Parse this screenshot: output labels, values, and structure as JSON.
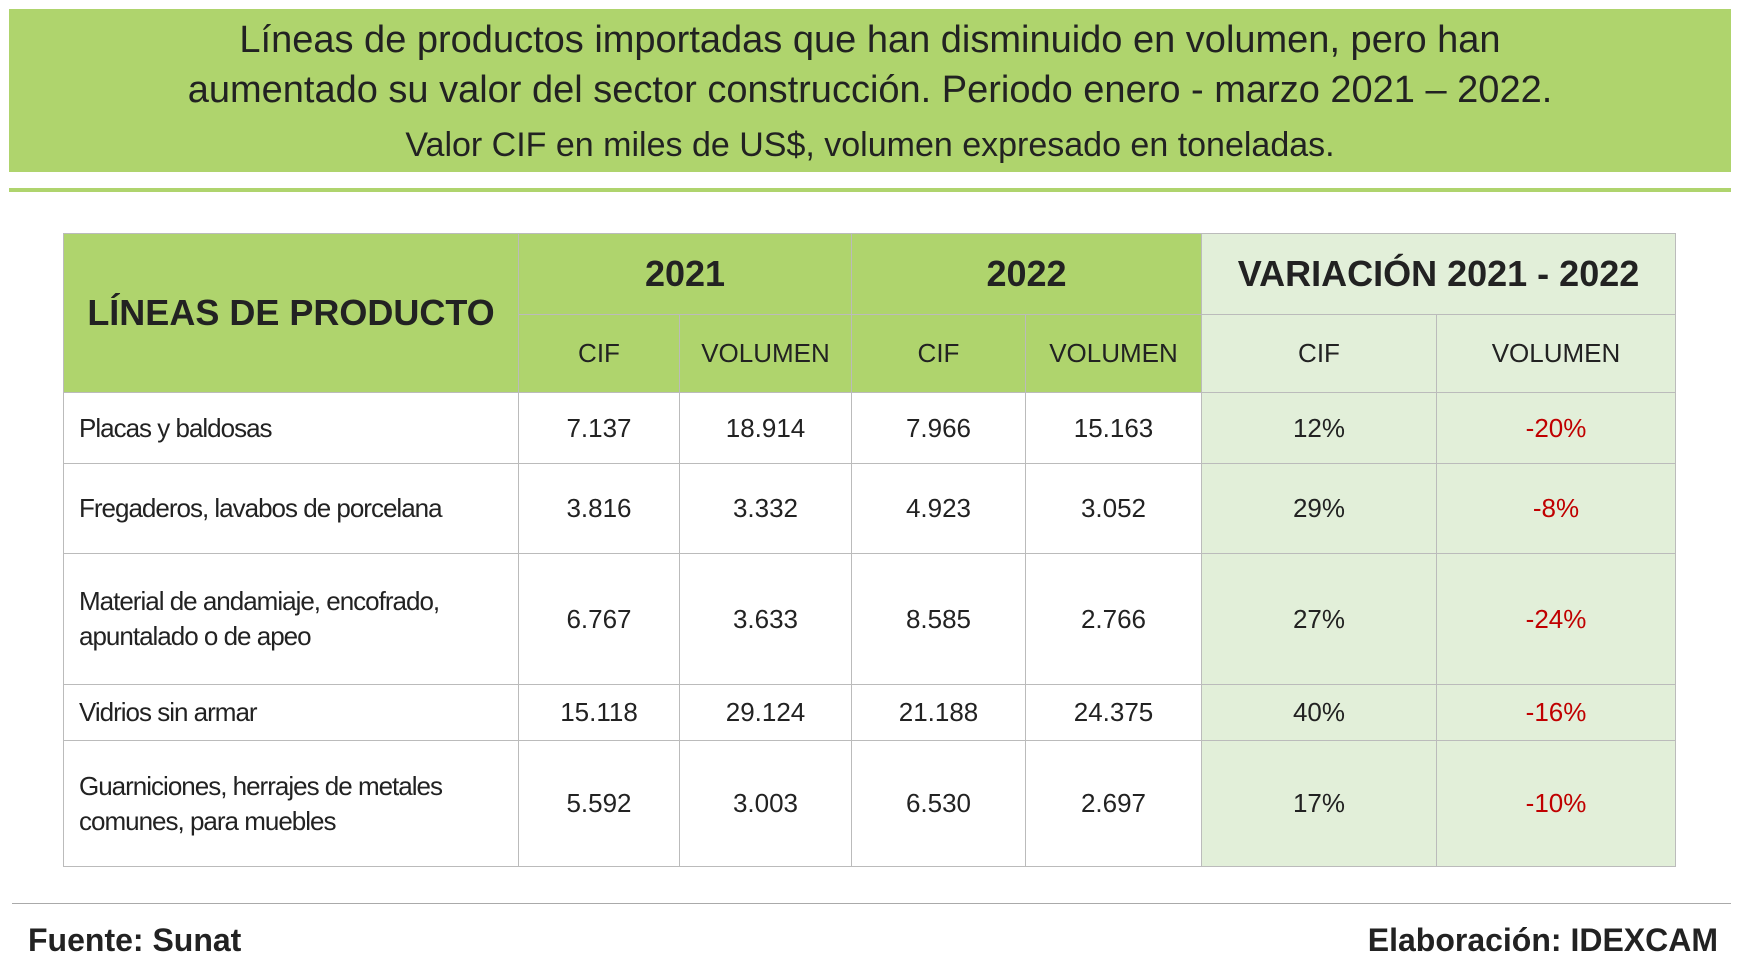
{
  "header": {
    "title_lines": [
      "Líneas de productos importadas que han disminuido en volumen, pero han",
      "aumentado su valor del sector construcción. Periodo enero - marzo 2021 – 2022."
    ],
    "subtitle": "Valor CIF en miles de US$, volumen expresado en toneladas."
  },
  "table": {
    "product_header": "LÍNEAS DE PRODUCTO",
    "groups": [
      "2021",
      "2022",
      "VARIACIÓN 2021 - 2022"
    ],
    "subheaders": [
      "CIF",
      "VOLUMEN",
      "CIF",
      "VOLUMEN",
      "CIF",
      "VOLUMEN"
    ],
    "rows": [
      [
        "Placas y baldosas",
        "7.137",
        "18.914",
        "7.966",
        "15.163",
        "12%",
        "-20%"
      ],
      [
        "Fregaderos, lavabos de porcelana",
        "3.816",
        "3.332",
        "4.923",
        "3.052",
        "29%",
        "-8%"
      ],
      [
        "Material de andamiaje, encofrado, apuntalado o de apeo",
        "6.767",
        "3.633",
        "8.585",
        "2.766",
        "27%",
        "-24%"
      ],
      [
        "Vidrios sin armar",
        "15.118",
        "29.124",
        "21.188",
        "24.375",
        "40%",
        "-16%"
      ],
      [
        "Guarniciones, herrajes de metales comunes, para muebles",
        "5.592",
        "3.003",
        "6.530",
        "2.697",
        "17%",
        "-10%"
      ]
    ]
  },
  "footer": {
    "source": "Fuente:  Sunat",
    "credit": "Elaboración: IDEXCAM"
  }
}
